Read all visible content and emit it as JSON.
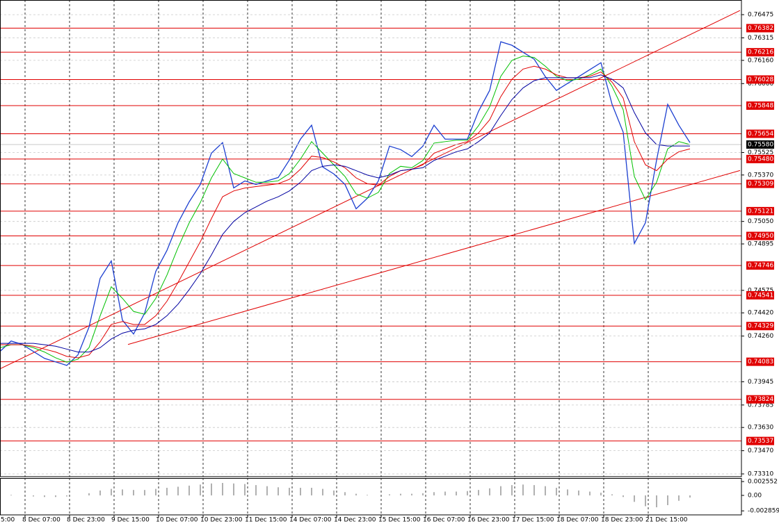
{
  "chart_data": {
    "type": "line",
    "xlim": [
      0,
      66.625
    ],
    "ylim": [
      0.73291,
      0.76576
    ],
    "xticks": [
      {
        "value": -1.75,
        "label": "5:00"
      },
      {
        "value": 2.25,
        "label": "8 Dec 07:00"
      },
      {
        "value": 6.25,
        "label": "8 Dec 23:00"
      },
      {
        "value": 10.25,
        "label": "9 Dec 15:00"
      },
      {
        "value": 14.25,
        "label": "10 Dec 07:00"
      },
      {
        "value": 18.25,
        "label": "10 Dec 23:00"
      },
      {
        "value": 22.25,
        "label": "11 Dec 15:00"
      },
      {
        "value": 26.25,
        "label": "14 Dec 07:00"
      },
      {
        "value": 30.25,
        "label": "14 Dec 23:00"
      },
      {
        "value": 34.25,
        "label": "15 Dec 15:00"
      },
      {
        "value": 38.25,
        "label": "16 Dec 07:00"
      },
      {
        "value": 42.25,
        "label": "16 Dec 23:00"
      },
      {
        "value": 46.25,
        "label": "17 Dec 15:00"
      },
      {
        "value": 50.25,
        "label": "18 Dec 07:00"
      },
      {
        "value": 54.25,
        "label": "18 Dec 23:00"
      },
      {
        "value": 58.25,
        "label": "21 Dec 15:00"
      }
    ],
    "yticks": [
      0.76475,
      0.76315,
      {
        "value": 0.7616,
        "label": "0.76160"
      },
      {
        "value": 0.76,
        "label": "0.76000"
      },
      0.75525,
      {
        "value": 0.7537,
        "label": "0.75370"
      },
      {
        "value": 0.7505,
        "label": "0.75050"
      },
      0.74895,
      0.74575,
      {
        "value": 0.7442,
        "label": "0.74420"
      },
      {
        "value": 0.7426,
        "label": "0.74260"
      },
      0.73945,
      0.73785,
      {
        "value": 0.7363,
        "label": "0.73630"
      },
      {
        "value": 0.7347,
        "label": "0.73470"
      },
      {
        "value": 0.7331,
        "label": "0.73310"
      }
    ],
    "grid": true,
    "series": [
      {
        "color": "#1c3fd0",
        "values": [
          0.74154,
          0.74226,
          0.74202,
          0.74154,
          0.74106,
          0.74082,
          0.74058,
          0.7413,
          0.74322,
          0.74658,
          0.74778,
          0.7437,
          0.74274,
          0.74418,
          0.74706,
          0.7485,
          0.75041,
          0.75185,
          0.75305,
          0.75521,
          0.75593,
          0.75281,
          0.75329,
          0.75305,
          0.75329,
          0.75353,
          0.75473,
          0.75617,
          0.75713,
          0.75425,
          0.75377,
          0.75305,
          0.75137,
          0.75209,
          0.75329,
          0.75569,
          0.75545,
          0.75497,
          0.75569,
          0.75713,
          0.75617,
          0.75617,
          0.75617,
          0.75809,
          0.75953,
          0.76288,
          0.76264,
          0.76216,
          0.76168,
          0.76048,
          0.75953,
          0.76001,
          0.76048,
          0.76096,
          0.76144,
          0.75857,
          0.75665,
          0.74898,
          0.75041,
          0.75473,
          0.75857,
          0.75713,
          0.75593
        ]
      },
      {
        "color": "#00c000",
        "values": [
          0.7418,
          0.742,
          0.742,
          0.7418,
          0.7415,
          0.7411,
          0.7408,
          0.741,
          0.7418,
          0.744,
          0.746,
          0.7452,
          0.7443,
          0.7441,
          0.7452,
          0.7468,
          0.7487,
          0.7504,
          0.7518,
          0.7535,
          0.7548,
          0.7538,
          0.7535,
          0.7532,
          0.7532,
          0.7533,
          0.7538,
          0.7548,
          0.756,
          0.7552,
          0.7544,
          0.7536,
          0.7524,
          0.7521,
          0.7525,
          0.7538,
          0.7543,
          0.7542,
          0.7547,
          0.7559,
          0.756,
          0.7561,
          0.7561,
          0.7571,
          0.7584,
          0.7605,
          0.7616,
          0.7619,
          0.7618,
          0.7612,
          0.7605,
          0.7602,
          0.7603,
          0.7606,
          0.761,
          0.7598,
          0.7582,
          0.7536,
          0.752,
          0.7532,
          0.7555,
          0.756,
          0.7558
        ]
      },
      {
        "color": "#e00000",
        "values": [
          0.742,
          0.742,
          0.742,
          0.7419,
          0.7417,
          0.7415,
          0.7412,
          0.7411,
          0.7413,
          0.7422,
          0.7434,
          0.7436,
          0.7434,
          0.7434,
          0.744,
          0.745,
          0.7463,
          0.7477,
          0.7491,
          0.7507,
          0.7522,
          0.7526,
          0.7528,
          0.7529,
          0.753,
          0.7531,
          0.7534,
          0.7541,
          0.755,
          0.7549,
          0.7546,
          0.7542,
          0.7535,
          0.7531,
          0.753,
          0.7536,
          0.754,
          0.7541,
          0.7544,
          0.7552,
          0.7555,
          0.7558,
          0.756,
          0.7566,
          0.7575,
          0.7591,
          0.7603,
          0.761,
          0.7612,
          0.761,
          0.7606,
          0.7604,
          0.7604,
          0.7605,
          0.7608,
          0.7601,
          0.759,
          0.756,
          0.7544,
          0.754,
          0.7548,
          0.7553,
          0.7555
        ]
      },
      {
        "color": "#0000a0",
        "values": [
          0.7421,
          0.7421,
          0.7421,
          0.7421,
          0.742,
          0.7419,
          0.7417,
          0.7415,
          0.7415,
          0.7418,
          0.7424,
          0.7428,
          0.743,
          0.7431,
          0.7434,
          0.744,
          0.7448,
          0.7458,
          0.7469,
          0.7482,
          0.7496,
          0.7505,
          0.7511,
          0.7515,
          0.7519,
          0.7522,
          0.7526,
          0.7532,
          0.754,
          0.7543,
          0.7544,
          0.7543,
          0.754,
          0.7537,
          0.7535,
          0.7537,
          0.754,
          0.7541,
          0.7542,
          0.7547,
          0.755,
          0.7553,
          0.7555,
          0.756,
          0.7566,
          0.7578,
          0.7589,
          0.7597,
          0.7602,
          0.7604,
          0.7604,
          0.7604,
          0.7604,
          0.7604,
          0.7606,
          0.7603,
          0.7597,
          0.758,
          0.7566,
          0.7558,
          0.7557,
          0.7557,
          0.7557
        ]
      }
    ],
    "levels": [
      0.76382,
      0.76216,
      0.76028,
      0.75848,
      0.75654,
      {
        "value": 0.7548,
        "label": "0.75480"
      },
      0.75309,
      0.75121,
      {
        "value": 0.7495,
        "label": "0.74950"
      },
      0.74746,
      0.74541,
      0.74329,
      0.74083,
      0.73824,
      0.73537
    ],
    "level_color": "#e00000",
    "price_level": {
      "value": 0.7558,
      "label": "0.75580"
    },
    "trendlines": [
      {
        "x": [
          0,
          66.5
        ],
        "y": [
          0.74034,
          0.76504
        ]
      },
      {
        "x": [
          11.5,
          66.5
        ],
        "y": [
          0.74202,
          0.75401
        ]
      }
    ],
    "oscillator": {
      "ylim": [
        -0.0036,
        0.0032
      ],
      "yticks": [
        0.002552,
        {
          "value": 0,
          "label": "0.00"
        },
        -0.002859
      ],
      "color": "#b0b0b0",
      "values": [
        0.0002,
        0.0001,
        0,
        -0.0002,
        -0.0003,
        -0.0003,
        -0.0002,
        0,
        0.0004,
        0.0009,
        0.0012,
        0.0011,
        0.001,
        0.001,
        0.0012,
        0.0014,
        0.0016,
        0.0018,
        0.002,
        0.0022,
        0.0023,
        0.0022,
        0.0021,
        0.0019,
        0.0017,
        0.0015,
        0.0014,
        0.0014,
        0.0014,
        0.0012,
        0.0009,
        0.0006,
        0.0003,
        0.0001,
        0,
        0.0002,
        0.0003,
        0.0003,
        0.0004,
        0.0006,
        0.0007,
        0.0007,
        0.0008,
        0.001,
        0.0013,
        0.0017,
        0.0019,
        0.002,
        0.0019,
        0.0017,
        0.0014,
        0.0011,
        0.0009,
        0.0007,
        0.0005,
        0.0002,
        -0.0003,
        -0.0012,
        -0.002,
        -0.0022,
        -0.0018,
        -0.001,
        -0.0004
      ]
    }
  }
}
